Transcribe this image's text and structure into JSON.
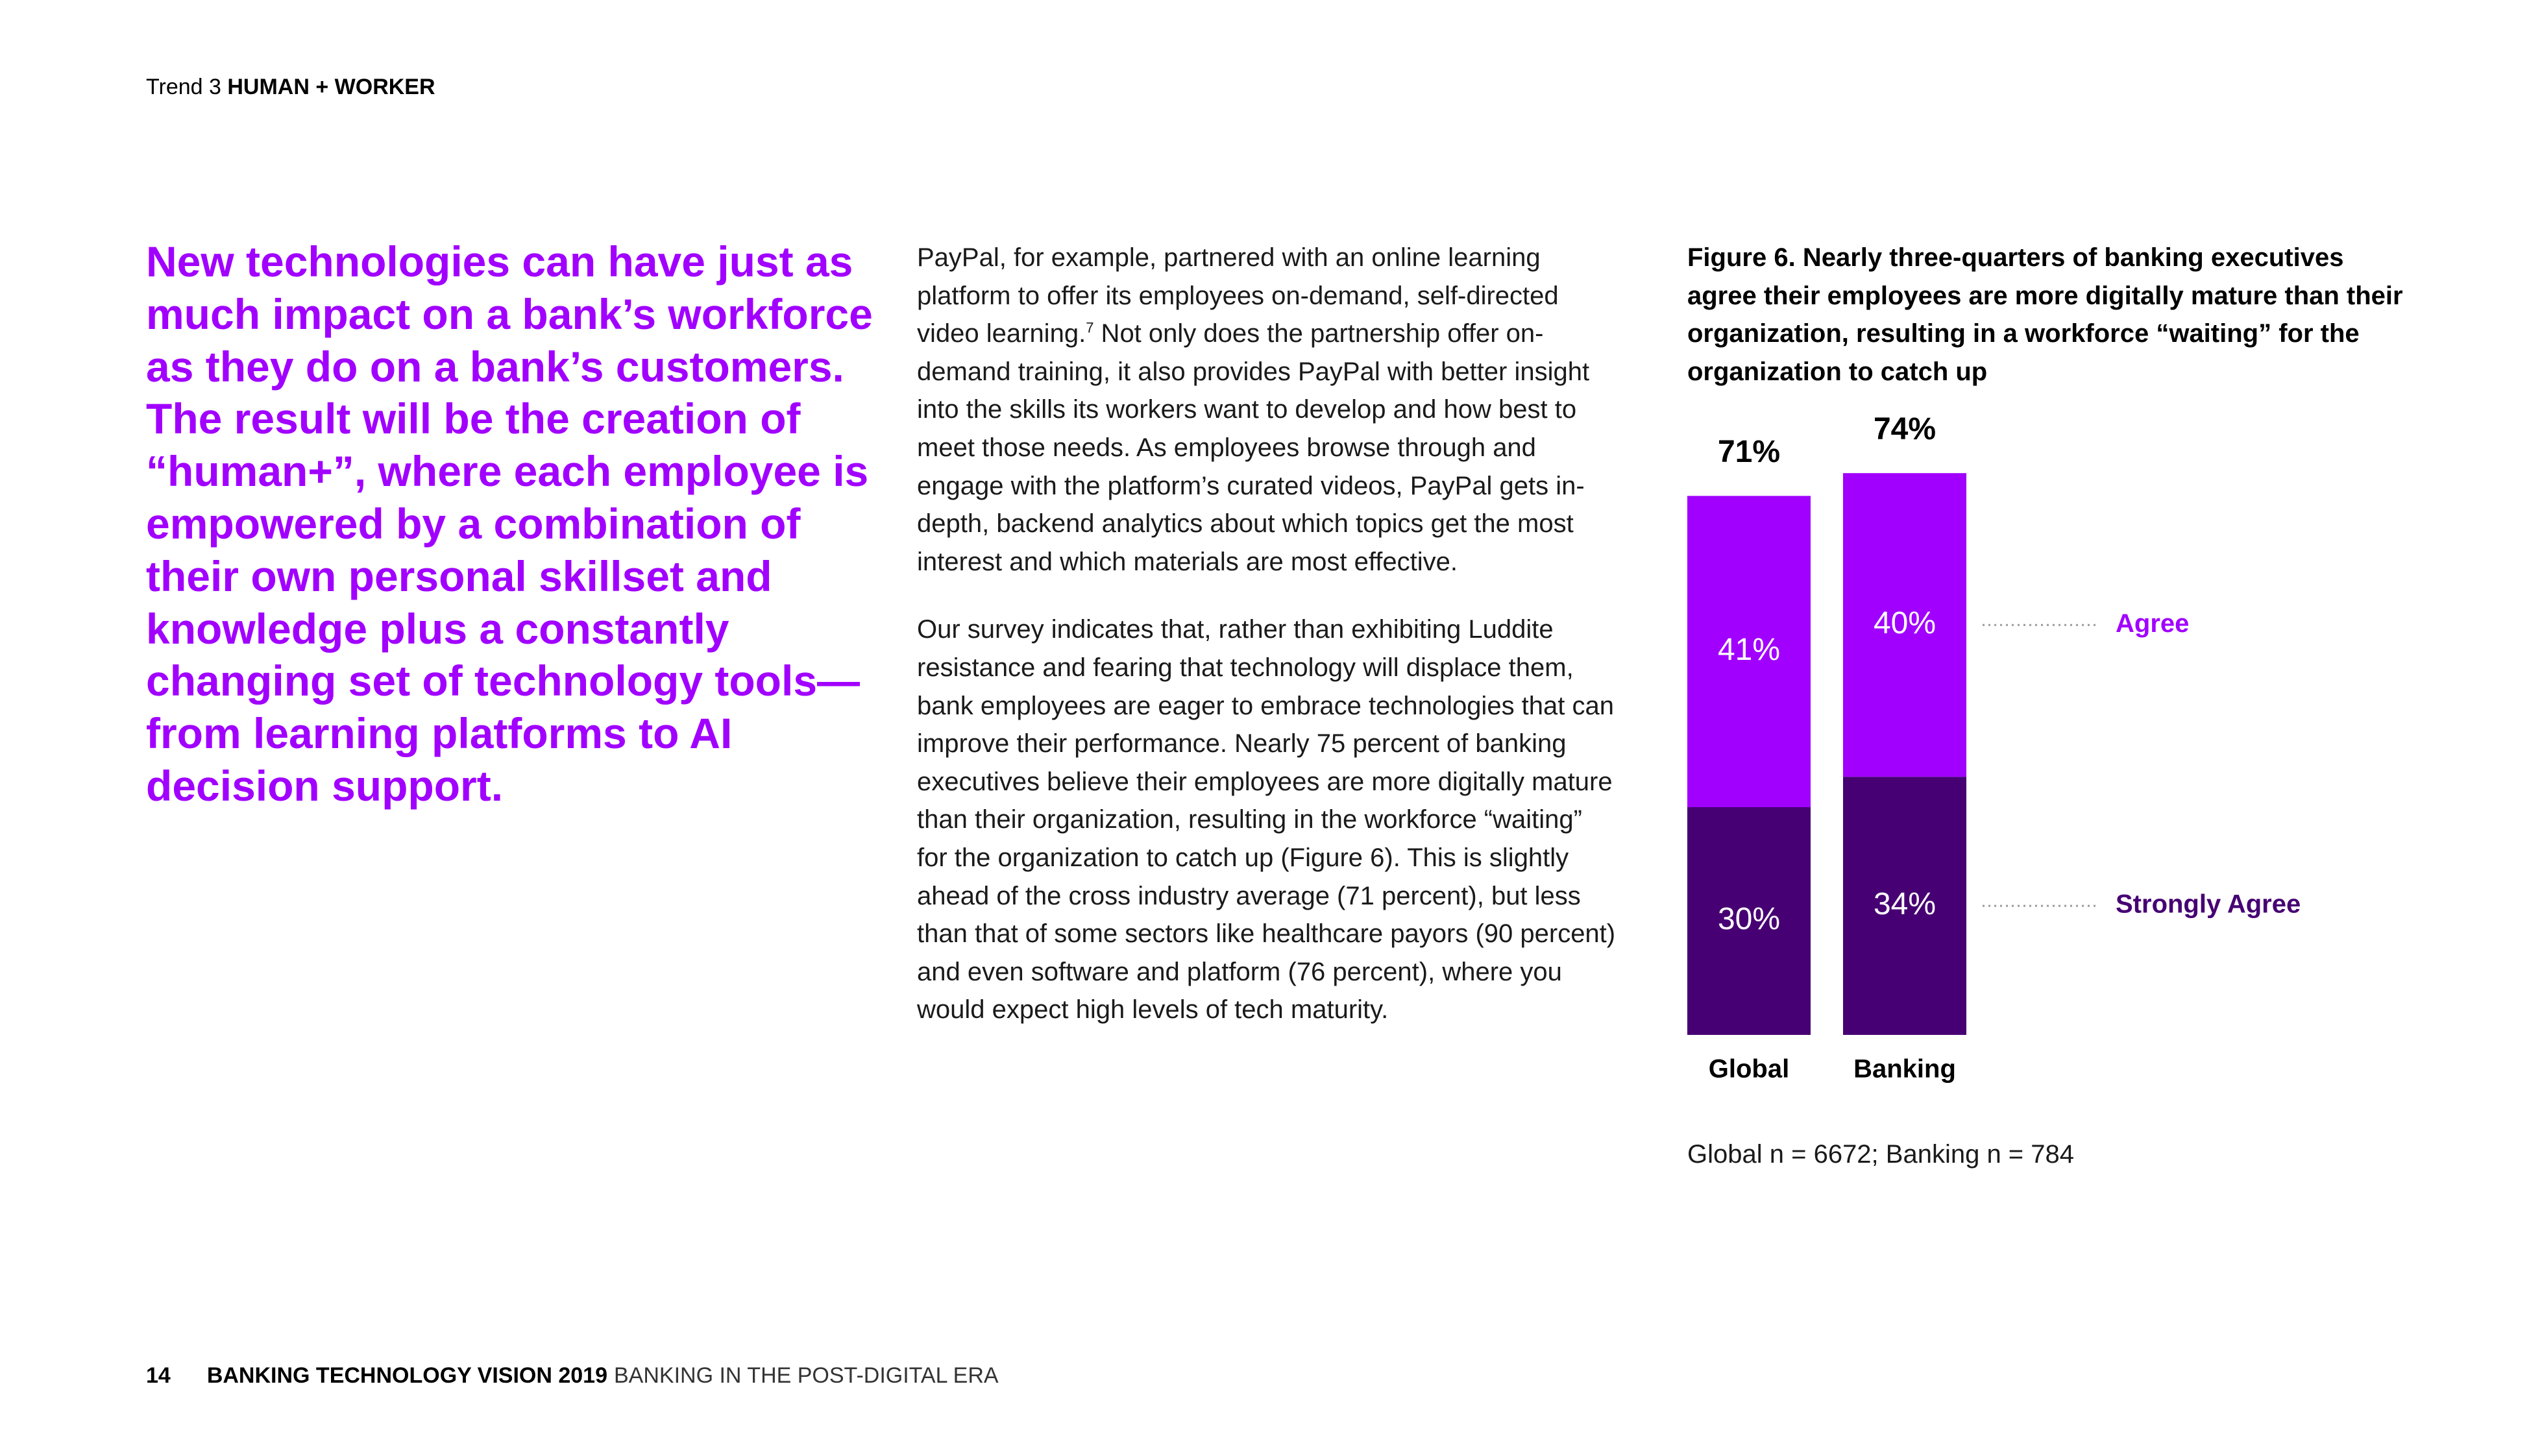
{
  "header": {
    "trend": "Trend 3",
    "title": "HUMAN + WORKER"
  },
  "headline": "New technologies can have just as much impact on a bank’s workforce as they do on a bank’s customers. The result will be the creation of “human+”, where each employee is empowered by a combination of their own personal skillset and knowledge plus a constantly changing set of technology tools—from learning platforms to AI decision support.",
  "body": {
    "p1_before": "PayPal, for example, partnered with an online learning platform to offer its employees on-demand, self-directed video learning.",
    "p1_sup": "7",
    "p1_after": " Not only does the partnership offer on-demand training, it also provides PayPal with better insight into the skills its workers want to develop and how best to meet those needs. As employees browse through and engage with the platform’s curated videos, PayPal gets in-depth, backend analytics about which topics get the most interest and which materials are most effective.",
    "p2": "Our survey indicates that, rather than exhibiting Luddite resistance and fearing that technology will displace them, bank employees are eager to embrace technologies that can improve their performance. Nearly 75 percent of banking executives believe their employees are more digitally mature than their organization, resulting in the workforce “waiting” for the organization to catch up (Figure 6). This is slightly ahead of the cross industry average (71 percent), but less than that of some sectors like healthcare payors (90 percent) and even software and platform (76 percent), where you would expect high levels of tech maturity."
  },
  "figure": {
    "title": "Figure 6. Nearly three-quarters of banking executives agree their employees are more digitally mature than their organization, resulting in a workforce “waiting” for the organization to catch up",
    "base_note": "Global n = 6672; Banking n = 784"
  },
  "chart_data": {
    "type": "bar",
    "stacked": true,
    "title": "Figure 6. Nearly three-quarters of banking executives agree their employees are more digitally mature than their organization, resulting in a workforce “waiting” for the organization to catch up",
    "categories": [
      "Global",
      "Banking"
    ],
    "series": [
      {
        "name": "Strongly Agree",
        "values": [
          30,
          34
        ],
        "labels": [
          "30%",
          "34%"
        ],
        "color": "#460073"
      },
      {
        "name": "Agree",
        "values": [
          41,
          40
        ],
        "labels": [
          "41%",
          "40%"
        ],
        "color": "#a100ff"
      }
    ],
    "totals": [
      71,
      74
    ],
    "total_labels": [
      "71%",
      "74%"
    ],
    "ylim": [
      0,
      74
    ],
    "grid": false,
    "legend_position": "right"
  },
  "colors": {
    "accent": "#a100ff",
    "dark_purple": "#460073",
    "text": "#000000"
  },
  "footer": {
    "page_number": "14",
    "publication": "BANKING TECHNOLOGY VISION 2019",
    "section": "BANKING IN THE POST-DIGITAL ERA"
  }
}
